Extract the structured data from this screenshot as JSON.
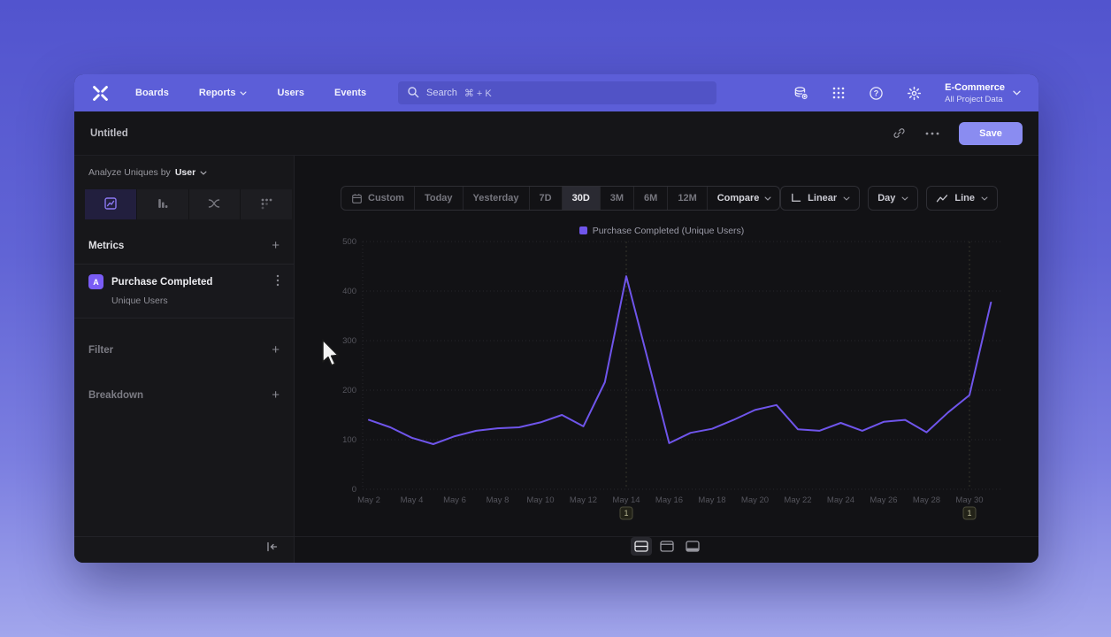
{
  "nav": {
    "items": [
      {
        "label": "Boards",
        "chevron": false
      },
      {
        "label": "Reports",
        "chevron": true
      },
      {
        "label": "Users",
        "chevron": false
      },
      {
        "label": "Events",
        "chevron": false
      }
    ],
    "search": {
      "placeholder": "Search",
      "shortcut": "⌘ + K"
    },
    "icons": [
      "data-sources-icon",
      "apps-grid-icon",
      "help-icon",
      "gear-icon"
    ],
    "project": {
      "name": "E-Commerce",
      "scope": "All Project Data"
    }
  },
  "titlebar": {
    "title": "Untitled",
    "icons": [
      "link-icon",
      "more-ellipsis-icon"
    ],
    "save_label": "Save"
  },
  "sidebar": {
    "analyze_label": "Analyze Uniques by",
    "analyze_value": "User",
    "tabs": [
      {
        "icon": "insights-icon",
        "active": true
      },
      {
        "icon": "funnels-icon",
        "active": false
      },
      {
        "icon": "flows-icon",
        "active": false
      },
      {
        "icon": "retention-icon",
        "active": false
      }
    ],
    "metrics_label": "Metrics",
    "metric_card": {
      "badge": "A",
      "name": "Purchase Completed",
      "subtitle": "Unique Users"
    },
    "filter_label": "Filter",
    "breakdown_label": "Breakdown"
  },
  "toolbar": {
    "date_ranges": [
      "Custom",
      "Today",
      "Yesterday",
      "7D",
      "30D",
      "3M",
      "6M",
      "12M"
    ],
    "active_range": "30D",
    "compare_label": "Compare",
    "scale_label": "Linear",
    "interval_label": "Day",
    "chart_type_label": "Line"
  },
  "chart_data": {
    "type": "line",
    "legend": [
      {
        "label": "Purchase Completed (Unique Users)",
        "color": "#6F55EB"
      }
    ],
    "x": [
      "May 2",
      "May 3",
      "May 4",
      "May 5",
      "May 6",
      "May 7",
      "May 8",
      "May 9",
      "May 10",
      "May 11",
      "May 12",
      "May 13",
      "May 14",
      "May 15",
      "May 16",
      "May 17",
      "May 18",
      "May 19",
      "May 20",
      "May 21",
      "May 22",
      "May 23",
      "May 24",
      "May 25",
      "May 26",
      "May 27",
      "May 28",
      "May 29",
      "May 30",
      "May 31"
    ],
    "series": [
      {
        "name": "Purchase Completed (Unique Users)",
        "color": "#6F55EB",
        "values": [
          140,
          125,
          104,
          91,
          107,
          118,
          123,
          125,
          135,
          150,
          127,
          216,
          430,
          262,
          93,
          114,
          122,
          140,
          160,
          170,
          121,
          118,
          134,
          118,
          136,
          140,
          115,
          155,
          190,
          377
        ]
      }
    ],
    "y_ticks": [
      0,
      100,
      200,
      300,
      400,
      500
    ],
    "ylim": [
      0,
      500
    ],
    "x_tick_every": 2,
    "annotations": [
      {
        "x_index": 12,
        "x_label": "May 14",
        "label": "1"
      },
      {
        "x_index": 28,
        "x_label": "May 30",
        "label": "1"
      }
    ],
    "grid": "dotted-horizontal",
    "legend_position": "top-center"
  },
  "colors": {
    "accent": "#6F55EB",
    "nav_bar": "#5C5ED8",
    "save_button": "#8A8CF1",
    "window_bg": "#131316",
    "axis_label": "#55555D",
    "annotation": "#B9B996"
  }
}
